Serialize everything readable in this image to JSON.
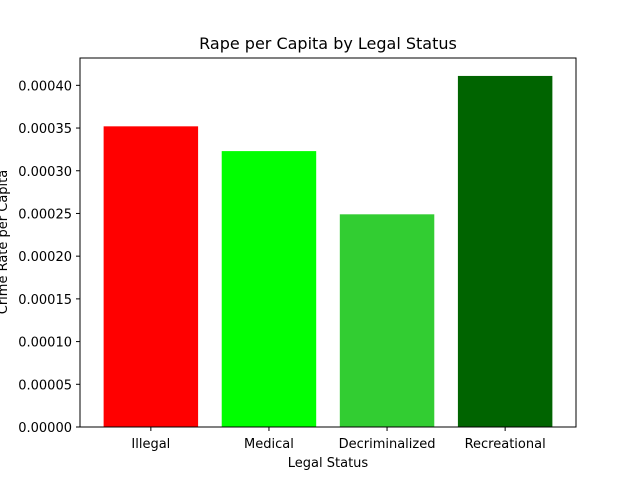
{
  "chart_data": {
    "type": "bar",
    "title": "Rape per Capita by Legal Status",
    "xlabel": "Legal Status",
    "ylabel": "Crime Rate per Capita",
    "categories": [
      "Illegal",
      "Medical",
      "Decriminalized",
      "Recreational"
    ],
    "values": [
      0.000352,
      0.000323,
      0.000249,
      0.000411
    ],
    "colors": [
      "#ff0000",
      "#00ff00",
      "#32cd32",
      "#006400"
    ],
    "ylim": [
      0,
      0.000432
    ],
    "yticks": [
      0,
      5e-05,
      0.0001,
      0.00015,
      0.0002,
      0.00025,
      0.0003,
      0.00035,
      0.0004
    ],
    "ytick_labels": [
      "0.00000",
      "0.00005",
      "0.00010",
      "0.00015",
      "0.00020",
      "0.00025",
      "0.00030",
      "0.00035",
      "0.00040"
    ],
    "grid": false,
    "legend": "none"
  }
}
